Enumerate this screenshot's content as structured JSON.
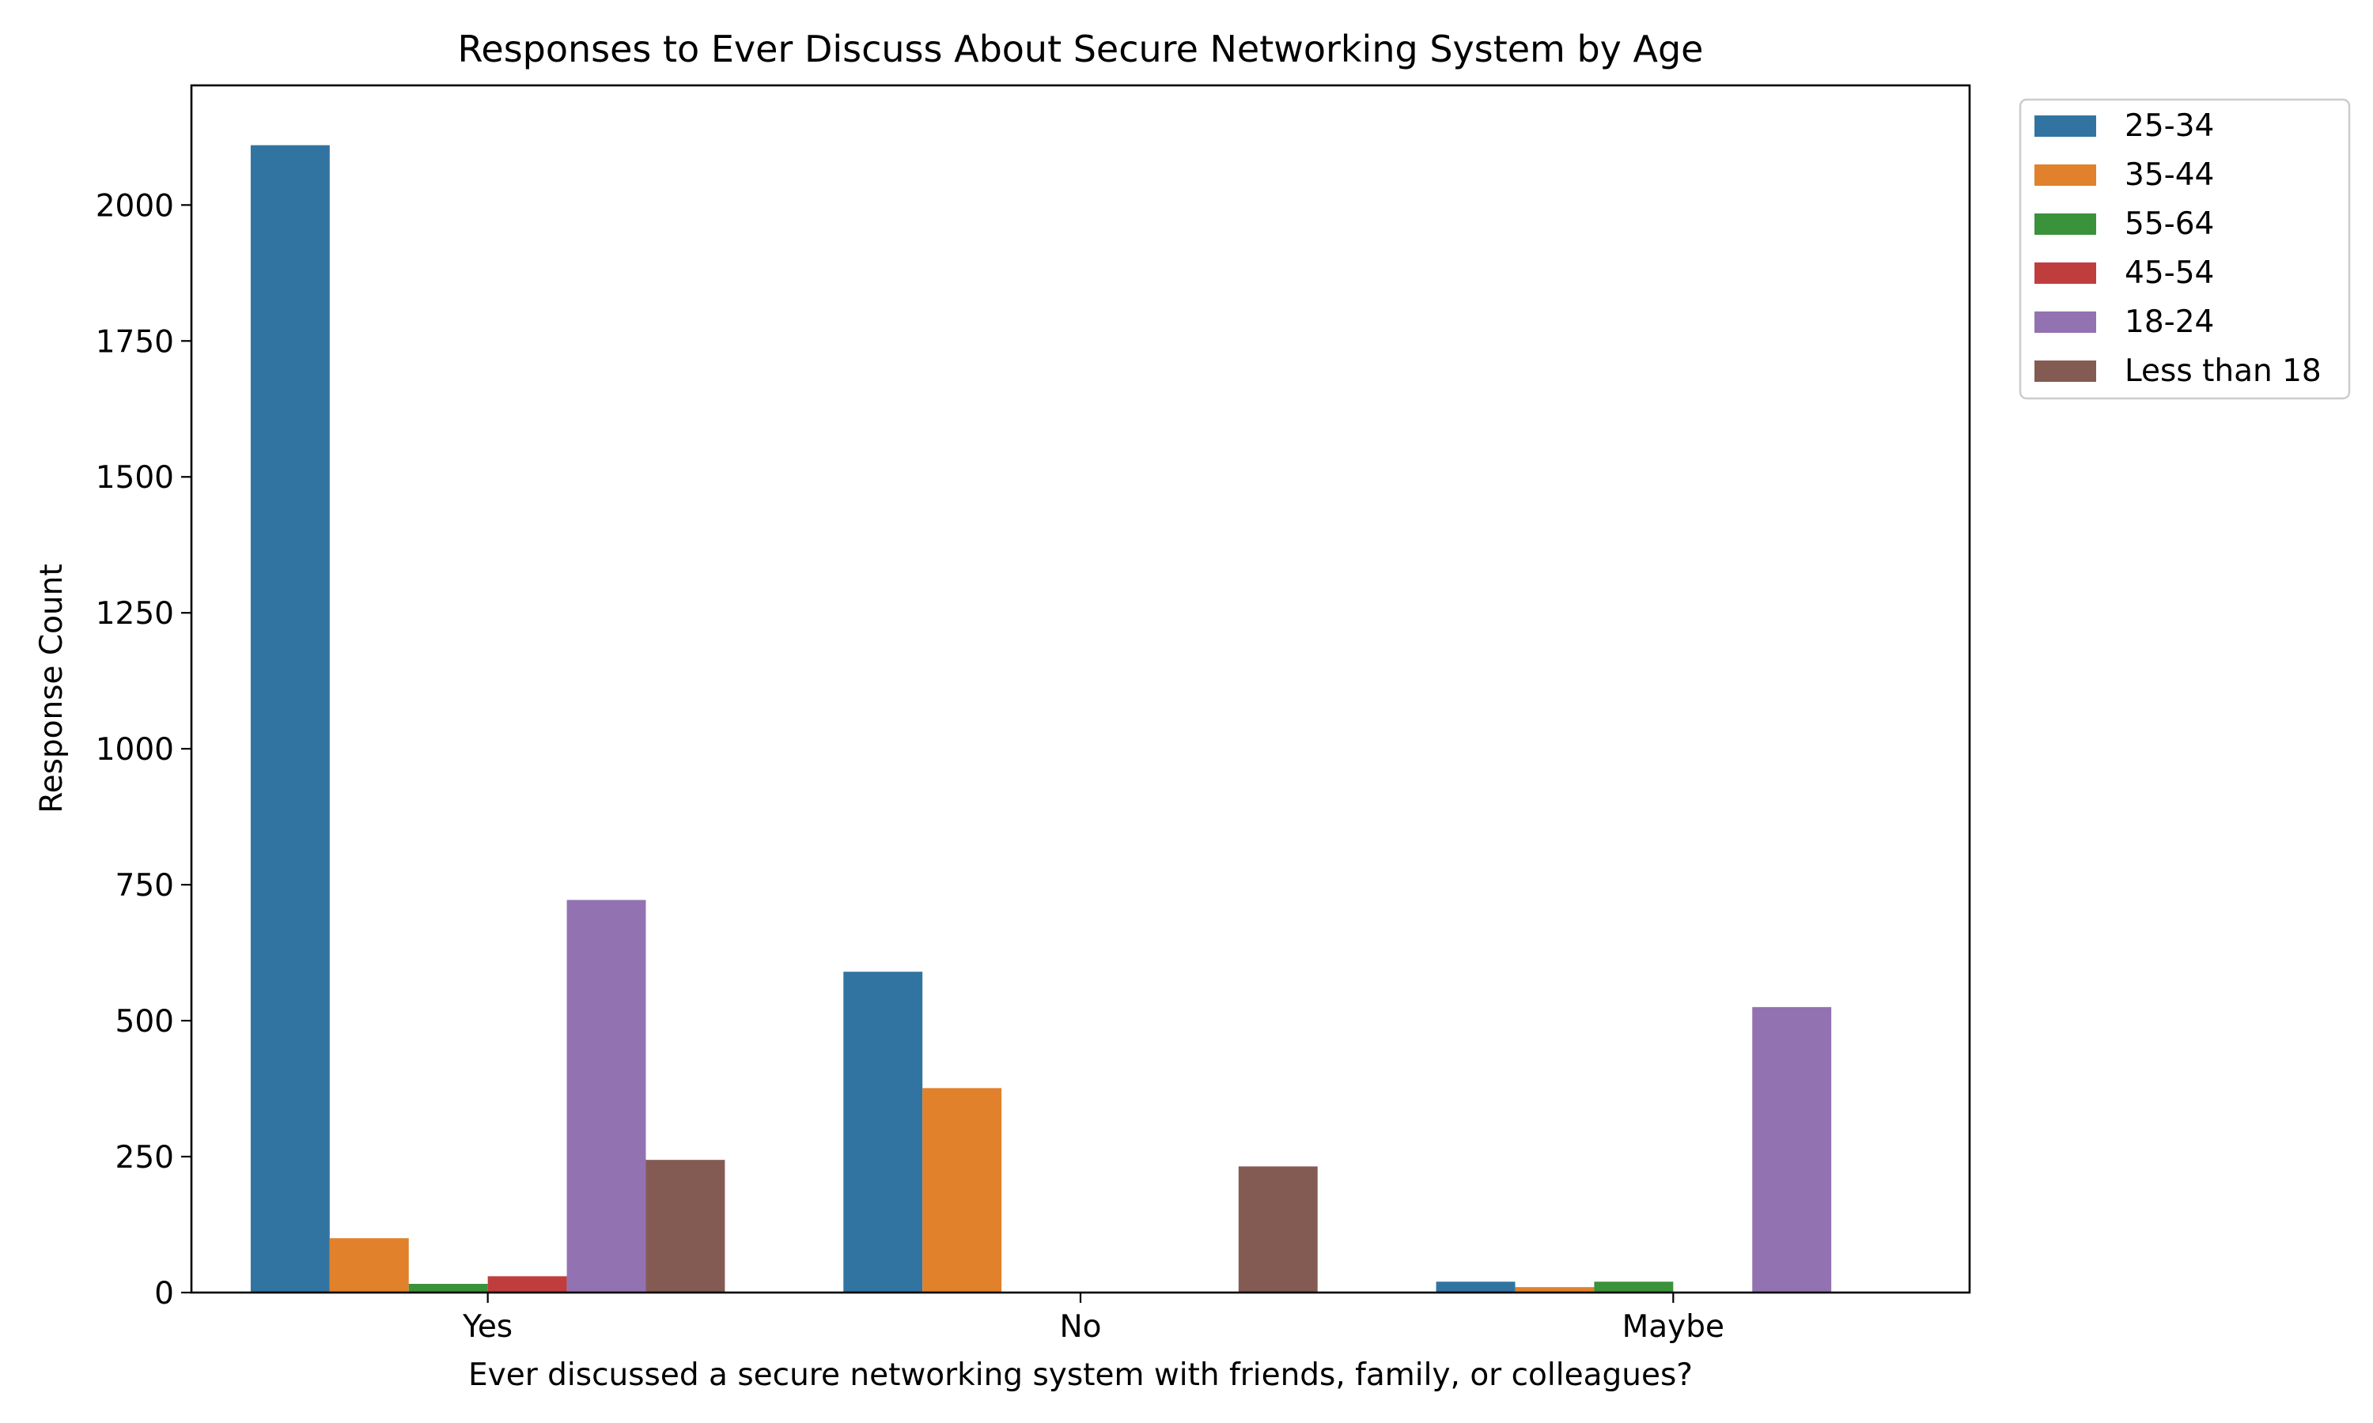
{
  "chart_data": {
    "type": "bar",
    "title": "Responses to Ever Discuss About Secure Networking System by Age",
    "xlabel": "Ever discussed a secure networking system with friends, family, or colleagues?",
    "ylabel": "Response Count",
    "categories": [
      "Yes",
      "No",
      "Maybe"
    ],
    "ylim": [
      0,
      2220
    ],
    "yticks": [
      0,
      250,
      500,
      750,
      1000,
      1250,
      1500,
      1750,
      2000
    ],
    "grid": false,
    "legend_position": "outside-top-right",
    "series": [
      {
        "name": "25-34",
        "color": "#3274a1",
        "values": [
          2110,
          590,
          20
        ]
      },
      {
        "name": "35-44",
        "color": "#e1812c",
        "values": [
          100,
          376,
          10
        ]
      },
      {
        "name": "55-64",
        "color": "#3a923a",
        "values": [
          16,
          0,
          20
        ]
      },
      {
        "name": "45-54",
        "color": "#c03d3e",
        "values": [
          30,
          0,
          0
        ]
      },
      {
        "name": "18-24",
        "color": "#9372b2",
        "values": [
          722,
          0,
          525
        ]
      },
      {
        "name": "Less than 18",
        "color": "#845b53",
        "values": [
          244,
          232,
          0
        ]
      }
    ]
  }
}
